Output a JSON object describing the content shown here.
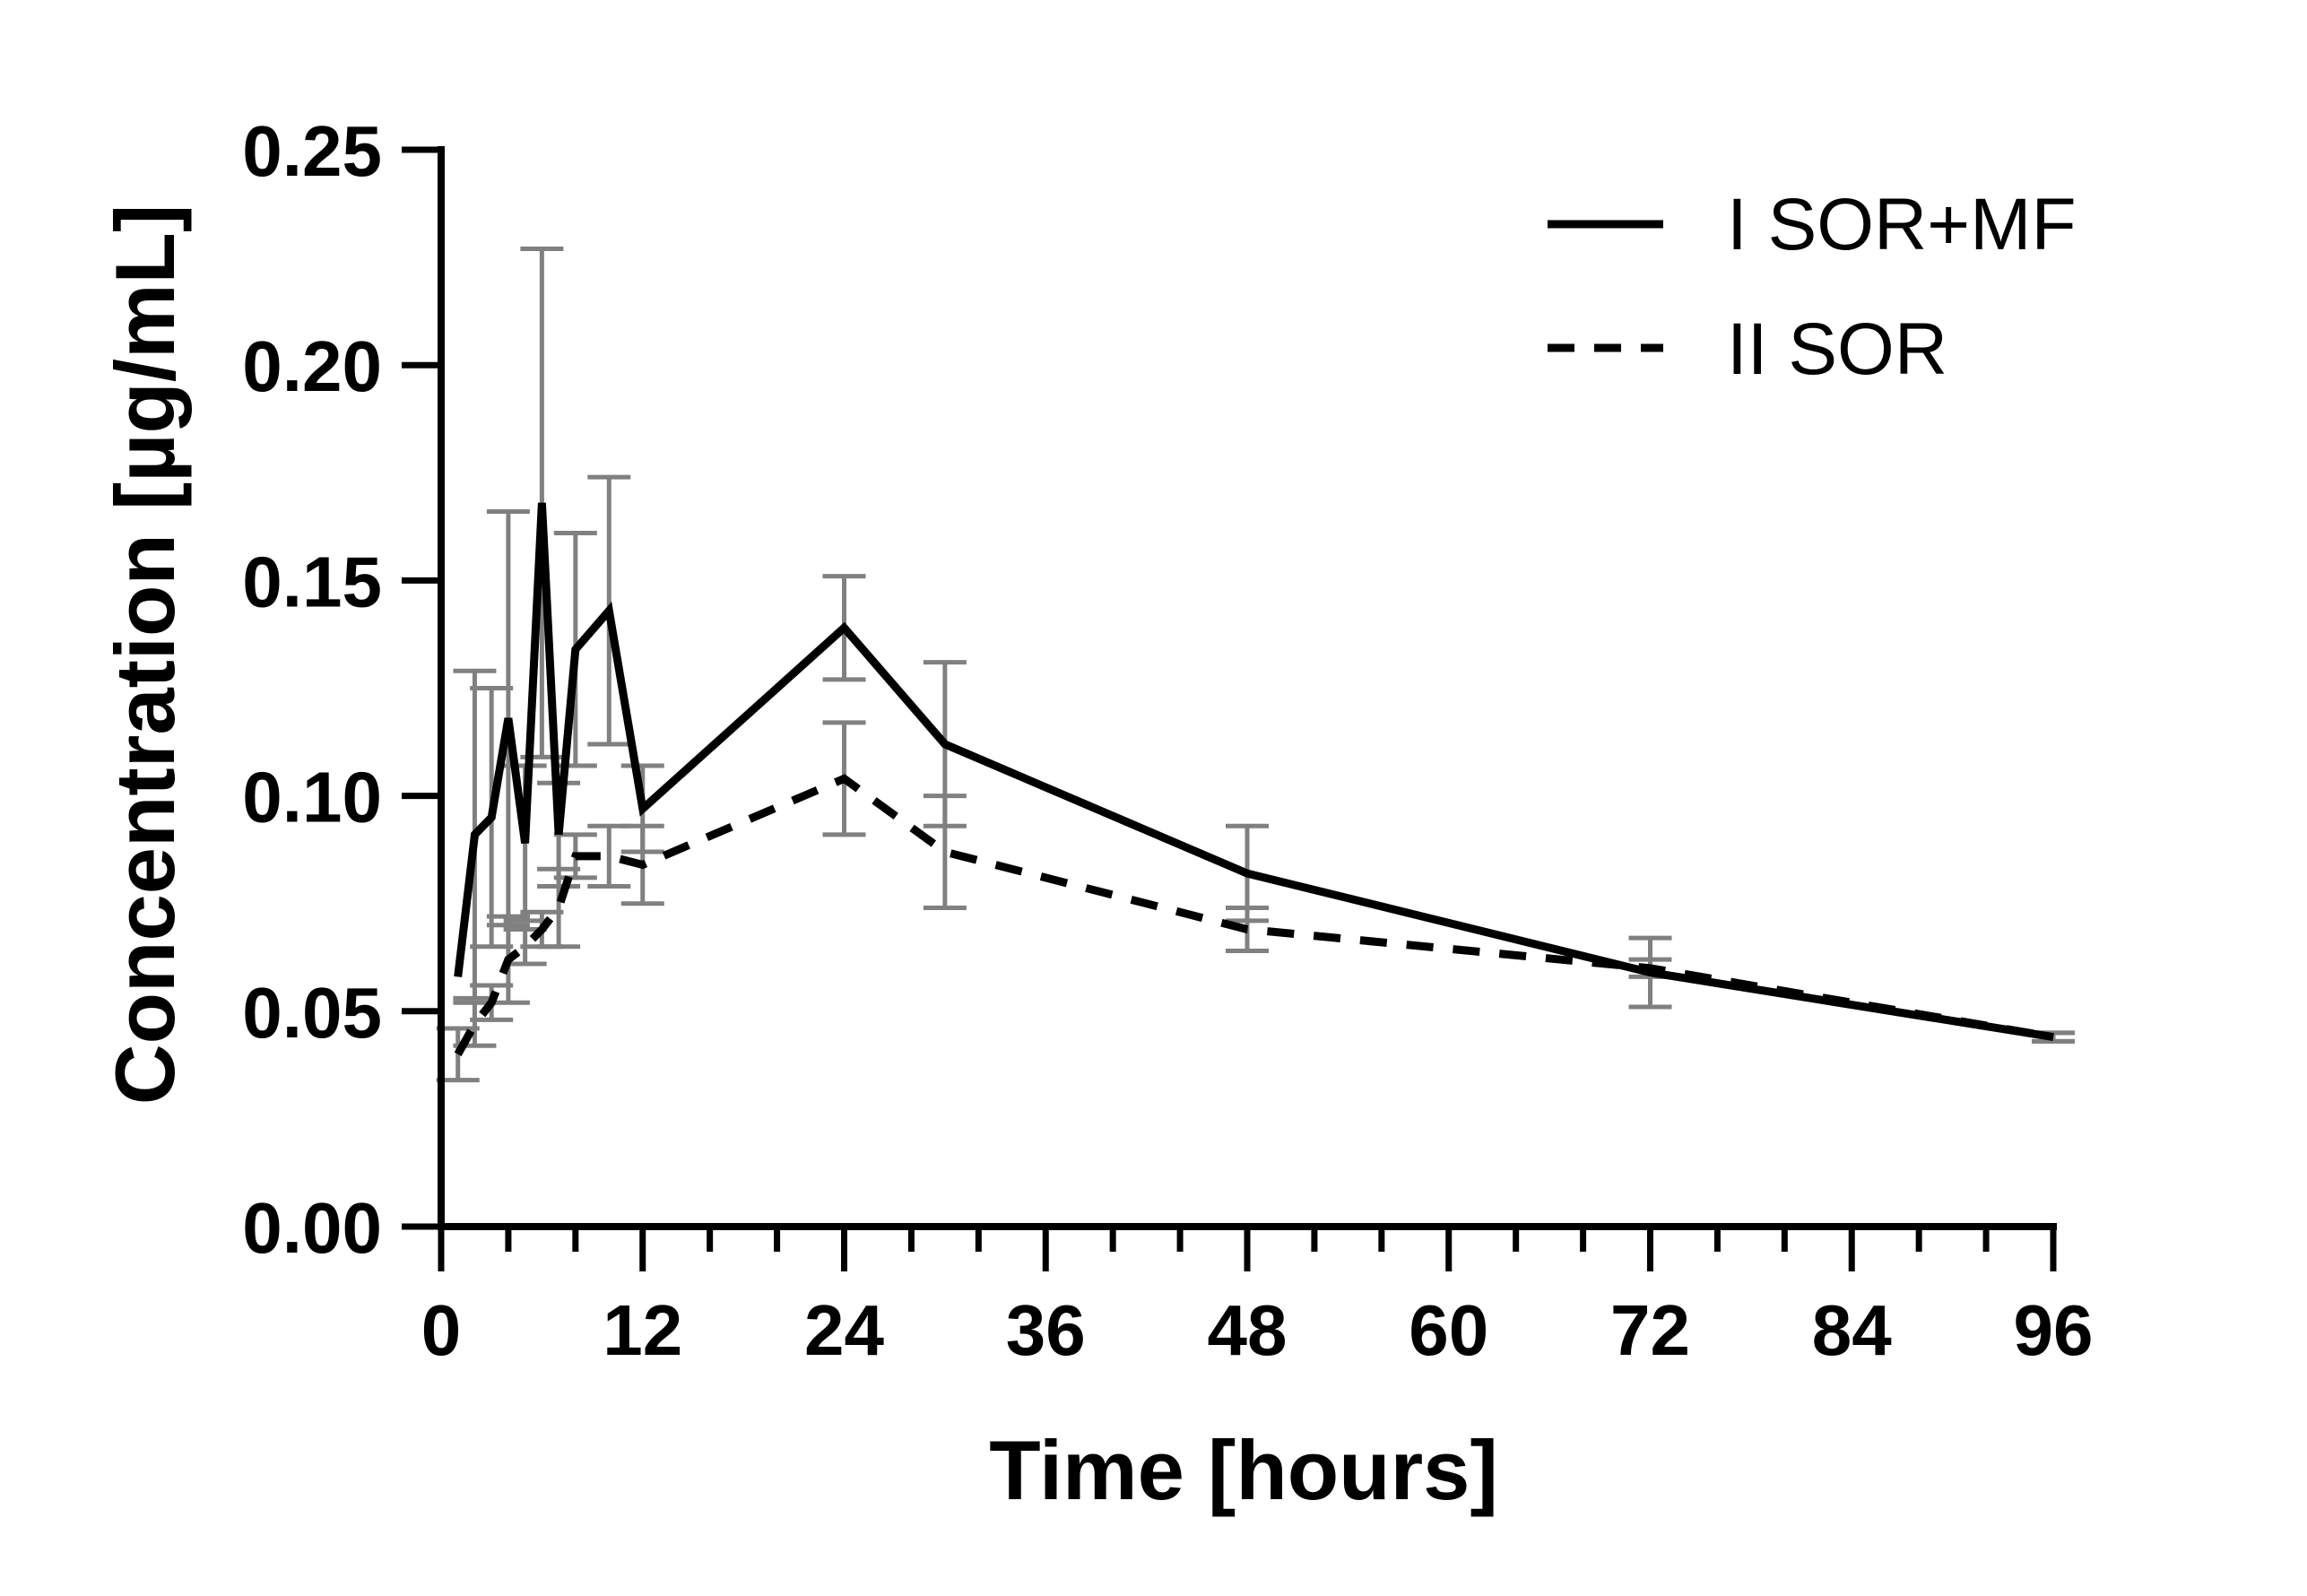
{
  "chart_data": {
    "type": "line",
    "title": "",
    "xlabel": "Time [hours]",
    "ylabel": "Concentration [µg/mL]",
    "xlim": [
      0,
      96
    ],
    "ylim": [
      0,
      0.25
    ],
    "x_ticks": [
      "0",
      "12",
      "24",
      "36",
      "48",
      "60",
      "72",
      "84",
      "96"
    ],
    "y_ticks": [
      "0.00",
      "0.05",
      "0.10",
      "0.15",
      "0.20",
      "0.25"
    ],
    "legend_position": "top-right",
    "grid": false,
    "series": [
      {
        "name": "I SOR+MF",
        "style": "solid",
        "color": "#000000",
        "points": [
          {
            "x": 1,
            "y": 0.058,
            "err": 0.0
          },
          {
            "x": 2,
            "y": 0.091,
            "err": 0.038
          },
          {
            "x": 3,
            "y": 0.095,
            "err": 0.03
          },
          {
            "x": 4,
            "y": 0.118,
            "err": 0.048
          },
          {
            "x": 5,
            "y": 0.089,
            "err": 0.018
          },
          {
            "x": 6,
            "y": 0.168,
            "err": 0.059
          },
          {
            "x": 7,
            "y": 0.091,
            "err": 0.012
          },
          {
            "x": 8,
            "y": 0.134,
            "err": 0.027
          },
          {
            "x": 10,
            "y": 0.143,
            "err": 0.031
          },
          {
            "x": 12,
            "y": 0.097,
            "err": 0.01
          },
          {
            "x": 24,
            "y": 0.139,
            "err": 0.012
          },
          {
            "x": 30,
            "y": 0.112,
            "err": 0.019
          },
          {
            "x": 48,
            "y": 0.082,
            "err": 0.011
          },
          {
            "x": 72,
            "y": 0.059,
            "err": 0.008
          },
          {
            "x": 96,
            "y": 0.044,
            "err": 0.001
          }
        ]
      },
      {
        "name": "II SOR",
        "style": "dashed",
        "color": "#000000",
        "points": [
          {
            "x": 1,
            "y": 0.04,
            "err": 0.006
          },
          {
            "x": 2,
            "y": 0.047,
            "err": 0.005
          },
          {
            "x": 3,
            "y": 0.052,
            "err": 0.004
          },
          {
            "x": 4,
            "y": 0.062,
            "err": 0.01
          },
          {
            "x": 5,
            "y": 0.065,
            "err": 0.004
          },
          {
            "x": 6,
            "y": 0.069,
            "err": 0.004
          },
          {
            "x": 7,
            "y": 0.074,
            "err": 0.009
          },
          {
            "x": 8,
            "y": 0.086,
            "err": 0.005
          },
          {
            "x": 10,
            "y": 0.086,
            "err": 0.007
          },
          {
            "x": 12,
            "y": 0.084,
            "err": 0.009
          },
          {
            "x": 24,
            "y": 0.104,
            "err": 0.013
          },
          {
            "x": 30,
            "y": 0.087,
            "err": 0.013
          },
          {
            "x": 48,
            "y": 0.069,
            "err": 0.005
          },
          {
            "x": 72,
            "y": 0.06,
            "err": 0.002
          },
          {
            "x": 96,
            "y": 0.044,
            "err": 0.001
          }
        ]
      }
    ]
  }
}
